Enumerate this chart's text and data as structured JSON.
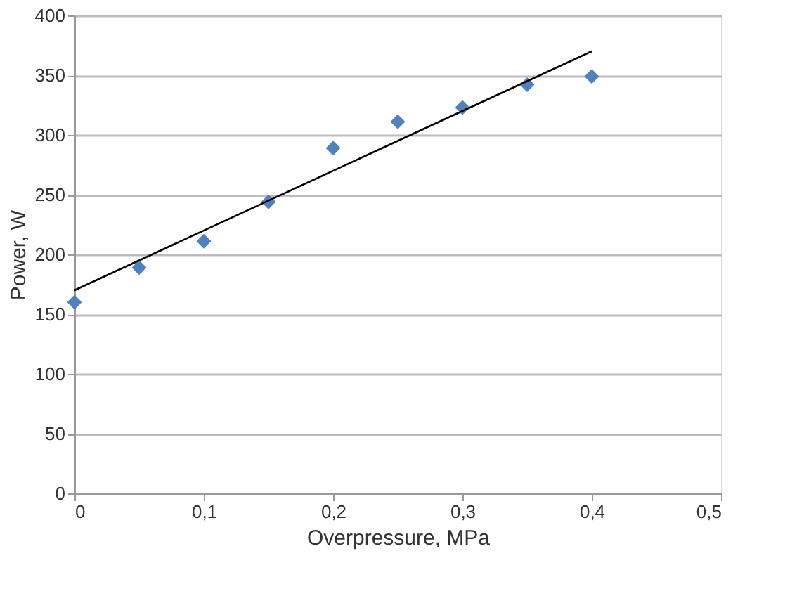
{
  "chart_data": {
    "type": "scatter",
    "xlabel": "Overpressure, MPa",
    "ylabel": "Power, W",
    "xlim": [
      0,
      0.5
    ],
    "xticks": [
      0,
      {
        "value": 0.1,
        "label": "0,1"
      },
      {
        "value": 0.2,
        "label": "0,2"
      },
      {
        "value": 0.3,
        "label": "0,3"
      },
      {
        "value": 0.4,
        "label": "0,4"
      },
      {
        "value": 0.5,
        "label": "0,5"
      }
    ],
    "ylim": [
      0,
      400
    ],
    "yticks": [
      0,
      50,
      100,
      150,
      200,
      250,
      300,
      350,
      400
    ],
    "grid": "y",
    "series": [
      {
        "marker": "diamond",
        "color": "#4f81bd",
        "x": [
          0,
          0.05,
          0.1,
          0.15,
          0.2,
          0.25,
          0.3,
          0.35,
          0.4
        ],
        "values": [
          160,
          189,
          211,
          244,
          289,
          311,
          323,
          342,
          349
        ]
      },
      {
        "type": "line",
        "color": "#000000",
        "x": [
          0,
          0.4
        ],
        "values": [
          170,
          370
        ]
      }
    ]
  }
}
